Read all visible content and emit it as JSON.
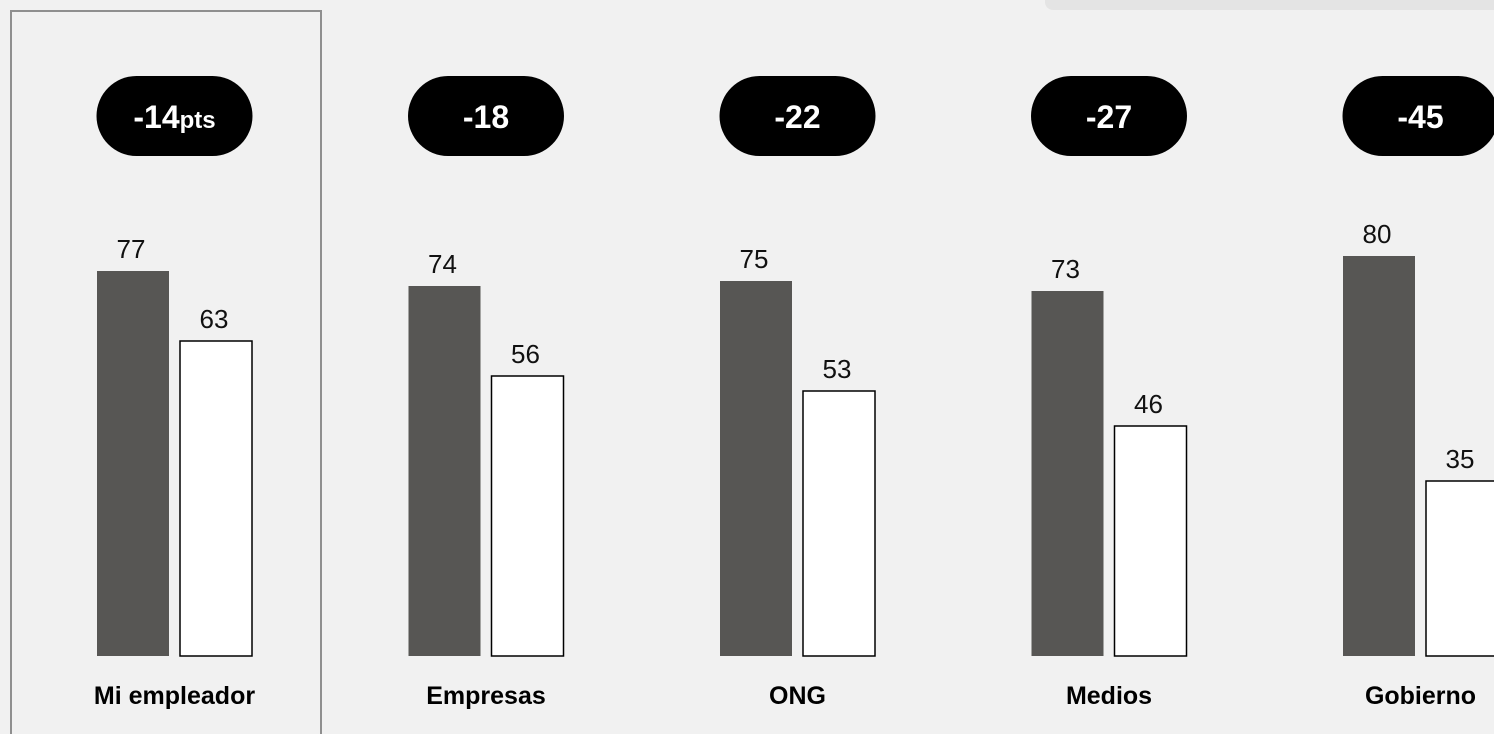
{
  "chart_data": {
    "type": "bar",
    "categories": [
      "Mi empleador",
      "Empresas",
      "ONG",
      "Medios",
      "Gobierno"
    ],
    "series": [
      {
        "values": [
          77,
          74,
          75,
          73,
          80
        ]
      },
      {
        "values": [
          63,
          56,
          53,
          46,
          35
        ]
      }
    ],
    "differences": [
      {
        "value": "-14",
        "suffix": "pts"
      },
      {
        "value": "-18",
        "suffix": ""
      },
      {
        "value": "-22",
        "suffix": ""
      },
      {
        "value": "-27",
        "suffix": ""
      },
      {
        "value": "-45",
        "suffix": ""
      }
    ],
    "highlighted_category": "Mi empleador",
    "colors": {
      "series_1": "#575654",
      "series_2": "#ffffff",
      "pill": "#000000",
      "background": "#f1f1f1"
    },
    "ylim": [
      0,
      100
    ],
    "grid": false,
    "legend": "none"
  }
}
